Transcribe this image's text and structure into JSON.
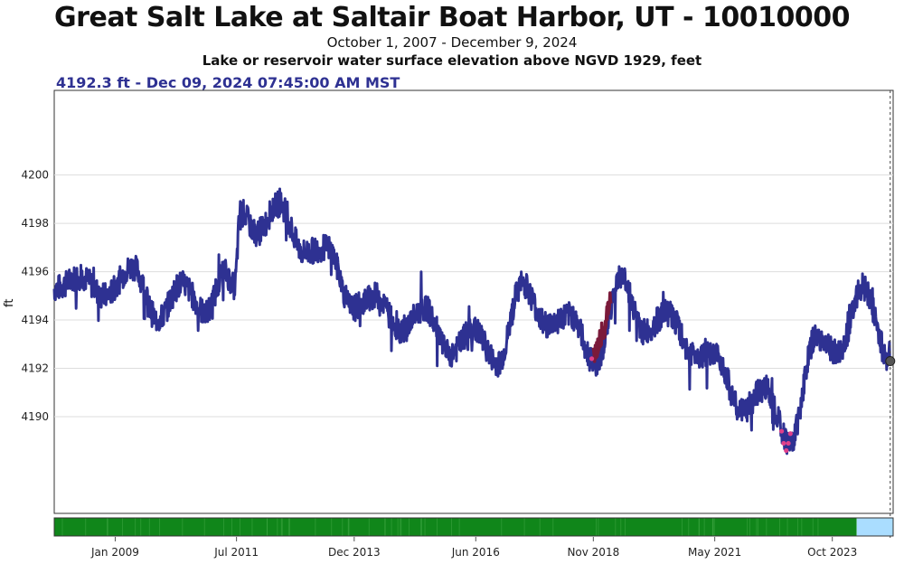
{
  "chart_data": {
    "type": "line",
    "title": "Great Salt Lake at Saltair Boat Harbor, UT - 10010000",
    "subtitle": "October 1, 2007 - December 9, 2024",
    "parameter": "Lake or reservoir water surface elevation above NGVD 1929, feet",
    "latest_value": "4192.3 ft - Dec 09, 2024 07:45:00 AM MST",
    "ylabel": "ft",
    "xlabel": "",
    "ylim": [
      4186,
      4203.5
    ],
    "xlim": [
      "2007-10-01",
      "2024-12-31"
    ],
    "grid": true,
    "y_ticks": [
      4190,
      4192,
      4194,
      4196,
      4198,
      4200
    ],
    "x_ticks": [
      {
        "date": "2009-01-01",
        "label": "Jan 2009"
      },
      {
        "date": "2011-07-01",
        "label": "Jul 2011"
      },
      {
        "date": "2013-12-01",
        "label": "Dec 2013"
      },
      {
        "date": "2016-06-01",
        "label": "Jun 2016"
      },
      {
        "date": "2018-11-01",
        "label": "Nov 2018"
      },
      {
        "date": "2021-05-01",
        "label": "May 2021"
      },
      {
        "date": "2023-10-01",
        "label": "Oct 2023"
      }
    ],
    "series": [
      {
        "color": "#2e3192",
        "points": [
          [
            "2007-10-01",
            4195.3
          ],
          [
            "2008-04-15",
            4195.8
          ],
          [
            "2008-10-15",
            4195.0
          ],
          [
            "2009-05-15",
            4196.2
          ],
          [
            "2009-11-15",
            4194.0
          ],
          [
            "2010-05-15",
            4195.5
          ],
          [
            "2010-11-15",
            4194.3
          ],
          [
            "2011-04-01",
            4196.0
          ],
          [
            "2011-06-15",
            4195.4
          ],
          [
            "2011-08-01",
            4198.5
          ],
          [
            "2011-12-01",
            4197.6
          ],
          [
            "2012-05-15",
            4198.8
          ],
          [
            "2012-11-15",
            4196.8
          ],
          [
            "2013-05-15",
            4197.0
          ],
          [
            "2013-11-15",
            4194.5
          ],
          [
            "2014-05-15",
            4195.0
          ],
          [
            "2014-11-15",
            4193.6
          ],
          [
            "2015-05-15",
            4194.5
          ],
          [
            "2015-11-15",
            4192.6
          ],
          [
            "2016-05-15",
            4193.6
          ],
          [
            "2016-11-15",
            4192.2
          ],
          [
            "2017-05-15",
            4195.5
          ],
          [
            "2017-11-15",
            4193.8
          ],
          [
            "2018-05-15",
            4194.2
          ],
          [
            "2018-11-15",
            4192.2
          ],
          [
            "2019-06-01",
            4195.8
          ],
          [
            "2019-11-15",
            4193.5
          ],
          [
            "2020-05-15",
            4194.3
          ],
          [
            "2020-11-15",
            4192.6
          ],
          [
            "2021-05-15",
            4192.5
          ],
          [
            "2021-11-15",
            4190.2
          ],
          [
            "2022-05-15",
            4191.2
          ],
          [
            "2022-11-15",
            4188.9
          ],
          [
            "2023-06-01",
            4193.3
          ],
          [
            "2023-11-15",
            4192.6
          ],
          [
            "2024-05-15",
            4195.4
          ],
          [
            "2024-12-09",
            4192.3
          ]
        ]
      },
      {
        "color": "#7b1a3a",
        "points": [
          [
            "2018-11-01",
            4192.5
          ],
          [
            "2019-01-15",
            4193.5
          ],
          [
            "2019-03-15",
            4195.0
          ]
        ]
      }
    ],
    "low_points": {
      "color": "#e0408a",
      "points": [
        [
          "2022-09-15",
          4189.4
        ],
        [
          "2022-10-01",
          4188.9
        ],
        [
          "2022-10-20",
          4188.6
        ],
        [
          "2022-11-05",
          4188.9
        ],
        [
          "2022-11-20",
          4189.3
        ],
        [
          "2018-10-20",
          4192.4
        ]
      ]
    },
    "status_bar": {
      "approved_color": "#10861a",
      "provisional_color": "#aaddff",
      "provisional_start": "2024-04-01"
    }
  }
}
